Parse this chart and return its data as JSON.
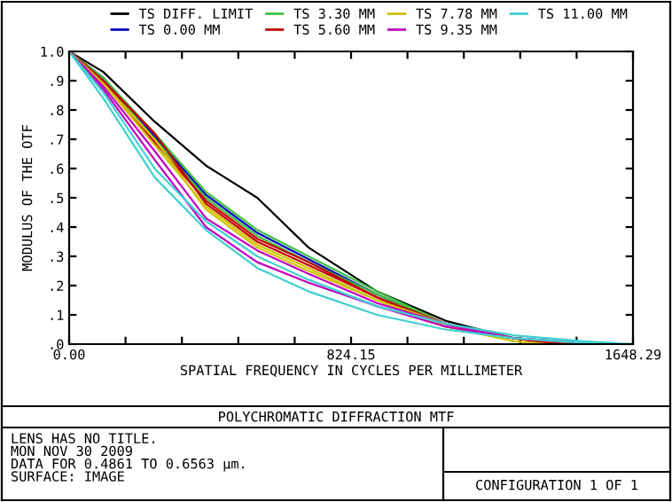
{
  "chart_data": {
    "type": "line",
    "title": "POLYCHROMATIC DIFFRACTION MTF",
    "xlabel": "SPATIAL FREQUENCY IN CYCLES PER MILLIMETER",
    "ylabel": "MODULUS OF THE OTF",
    "series": [
      {
        "name": "TS DIFF. LIMIT",
        "color": "#000000",
        "x": [
          0,
          100,
          250,
          400,
          550,
          700,
          900,
          1100,
          1300,
          1440
        ],
        "values": [
          1.0,
          0.93,
          0.76,
          0.61,
          0.5,
          0.33,
          0.18,
          0.08,
          0.02,
          0
        ]
      },
      {
        "name": "TS 0.00 MM",
        "color": "#0000c0",
        "x": [
          0,
          100,
          250,
          400,
          550,
          700,
          900,
          1100,
          1300,
          1480
        ],
        "values": [
          1.0,
          0.91,
          0.71,
          0.51,
          0.38,
          0.29,
          0.17,
          0.07,
          0.02,
          0
        ]
      },
      {
        "name": "TS 3.30 MM",
        "color": "#40c040",
        "x": [
          0,
          100,
          250,
          400,
          550,
          700,
          900,
          1100,
          1300,
          1520
        ],
        "values": [
          1.0,
          0.91,
          0.72,
          0.52,
          0.39,
          0.3,
          0.18,
          0.07,
          0.02,
          0
        ]
      },
      {
        "color": "#40c040",
        "x": [
          0,
          100,
          250,
          400,
          550,
          700,
          900,
          1100,
          1300,
          1500
        ],
        "values": [
          1.0,
          0.9,
          0.7,
          0.5,
          0.37,
          0.28,
          0.17,
          0.07,
          0.02,
          0
        ]
      },
      {
        "name": "TS 5.60 MM",
        "color": "#c00000",
        "x": [
          0,
          100,
          250,
          400,
          550,
          700,
          900,
          1100,
          1300,
          1460
        ],
        "values": [
          1.0,
          0.9,
          0.72,
          0.48,
          0.35,
          0.27,
          0.16,
          0.07,
          0.02,
          0
        ]
      },
      {
        "color": "#c00000",
        "x": [
          0,
          100,
          250,
          400,
          550,
          700,
          900,
          1100,
          1300,
          1420
        ],
        "values": [
          1.0,
          0.9,
          0.69,
          0.49,
          0.36,
          0.28,
          0.16,
          0.06,
          0.02,
          0
        ]
      },
      {
        "name": "TS 7.78 MM",
        "color": "#d0c000",
        "x": [
          0,
          100,
          250,
          400,
          550,
          700,
          900,
          1100,
          1300,
          1540
        ],
        "values": [
          1.0,
          0.89,
          0.7,
          0.46,
          0.33,
          0.25,
          0.15,
          0.07,
          0.02,
          0
        ]
      },
      {
        "color": "#d0c000",
        "x": [
          0,
          100,
          250,
          400,
          550,
          700,
          900,
          1100,
          1300,
          1400
        ],
        "values": [
          1.0,
          0.89,
          0.68,
          0.47,
          0.34,
          0.26,
          0.15,
          0.06,
          0.01,
          0
        ]
      },
      {
        "name": "TS 9.35 MM",
        "color": "#c000c0",
        "x": [
          0,
          100,
          250,
          400,
          550,
          700,
          900,
          1100,
          1300,
          1560
        ],
        "values": [
          1.0,
          0.88,
          0.66,
          0.43,
          0.32,
          0.24,
          0.14,
          0.07,
          0.02,
          0
        ]
      },
      {
        "color": "#c000c0",
        "x": [
          0,
          100,
          250,
          400,
          550,
          700,
          900,
          1100,
          1300,
          1580
        ],
        "values": [
          1.0,
          0.87,
          0.63,
          0.4,
          0.28,
          0.21,
          0.13,
          0.06,
          0.02,
          0
        ]
      },
      {
        "name": "TS 11.00 MM",
        "color": "#40d0d0",
        "x": [
          0,
          100,
          250,
          400,
          550,
          700,
          900,
          1100,
          1300,
          1500,
          1648.29
        ],
        "values": [
          1.0,
          0.86,
          0.6,
          0.42,
          0.3,
          0.22,
          0.13,
          0.07,
          0.03,
          0.01,
          0
        ]
      },
      {
        "color": "#40d0d0",
        "x": [
          0,
          100,
          250,
          400,
          550,
          700,
          900,
          1100,
          1300,
          1500,
          1600
        ],
        "values": [
          1.0,
          0.84,
          0.57,
          0.39,
          0.26,
          0.18,
          0.1,
          0.05,
          0.02,
          0.005,
          0
        ]
      }
    ],
    "xlim": [
      0,
      1648.29
    ],
    "ylim": [
      0,
      1.0
    ],
    "xticks": [
      {
        "value": 0,
        "label": "0.00"
      },
      {
        "value": 164.83,
        "label": null
      },
      {
        "value": 329.66,
        "label": null
      },
      {
        "value": 494.49,
        "label": null
      },
      {
        "value": 659.32,
        "label": null
      },
      {
        "value": 824.15,
        "label": "824.15"
      },
      {
        "value": 988.97,
        "label": null
      },
      {
        "value": 1153.8,
        "label": null
      },
      {
        "value": 1318.63,
        "label": null
      },
      {
        "value": 1483.46,
        "label": null
      },
      {
        "value": 1648.29,
        "label": "1648.29"
      }
    ],
    "yticks": [
      {
        "value": 0,
        "label": ".0"
      },
      {
        "value": 0.1,
        "label": ".1"
      },
      {
        "value": 0.2,
        "label": ".2"
      },
      {
        "value": 0.3,
        "label": ".3"
      },
      {
        "value": 0.4,
        "label": ".4"
      },
      {
        "value": 0.5,
        "label": ".5"
      },
      {
        "value": 0.6,
        "label": ".6"
      },
      {
        "value": 0.7,
        "label": ".7"
      },
      {
        "value": 0.8,
        "label": ".8"
      },
      {
        "value": 0.9,
        "label": ".9"
      },
      {
        "value": 1.0,
        "label": "1.0"
      }
    ],
    "grid": false,
    "legend": "top",
    "marker": "none",
    "line_style": "solid",
    "annotations": [
      "LENS HAS NO TITLE.\nMON NOV 30 2009\nDATA FOR 0.4861 TO 0.6563 µm.\nSURFACE: IMAGE",
      "CONFIGURATION 1 OF 1"
    ]
  }
}
